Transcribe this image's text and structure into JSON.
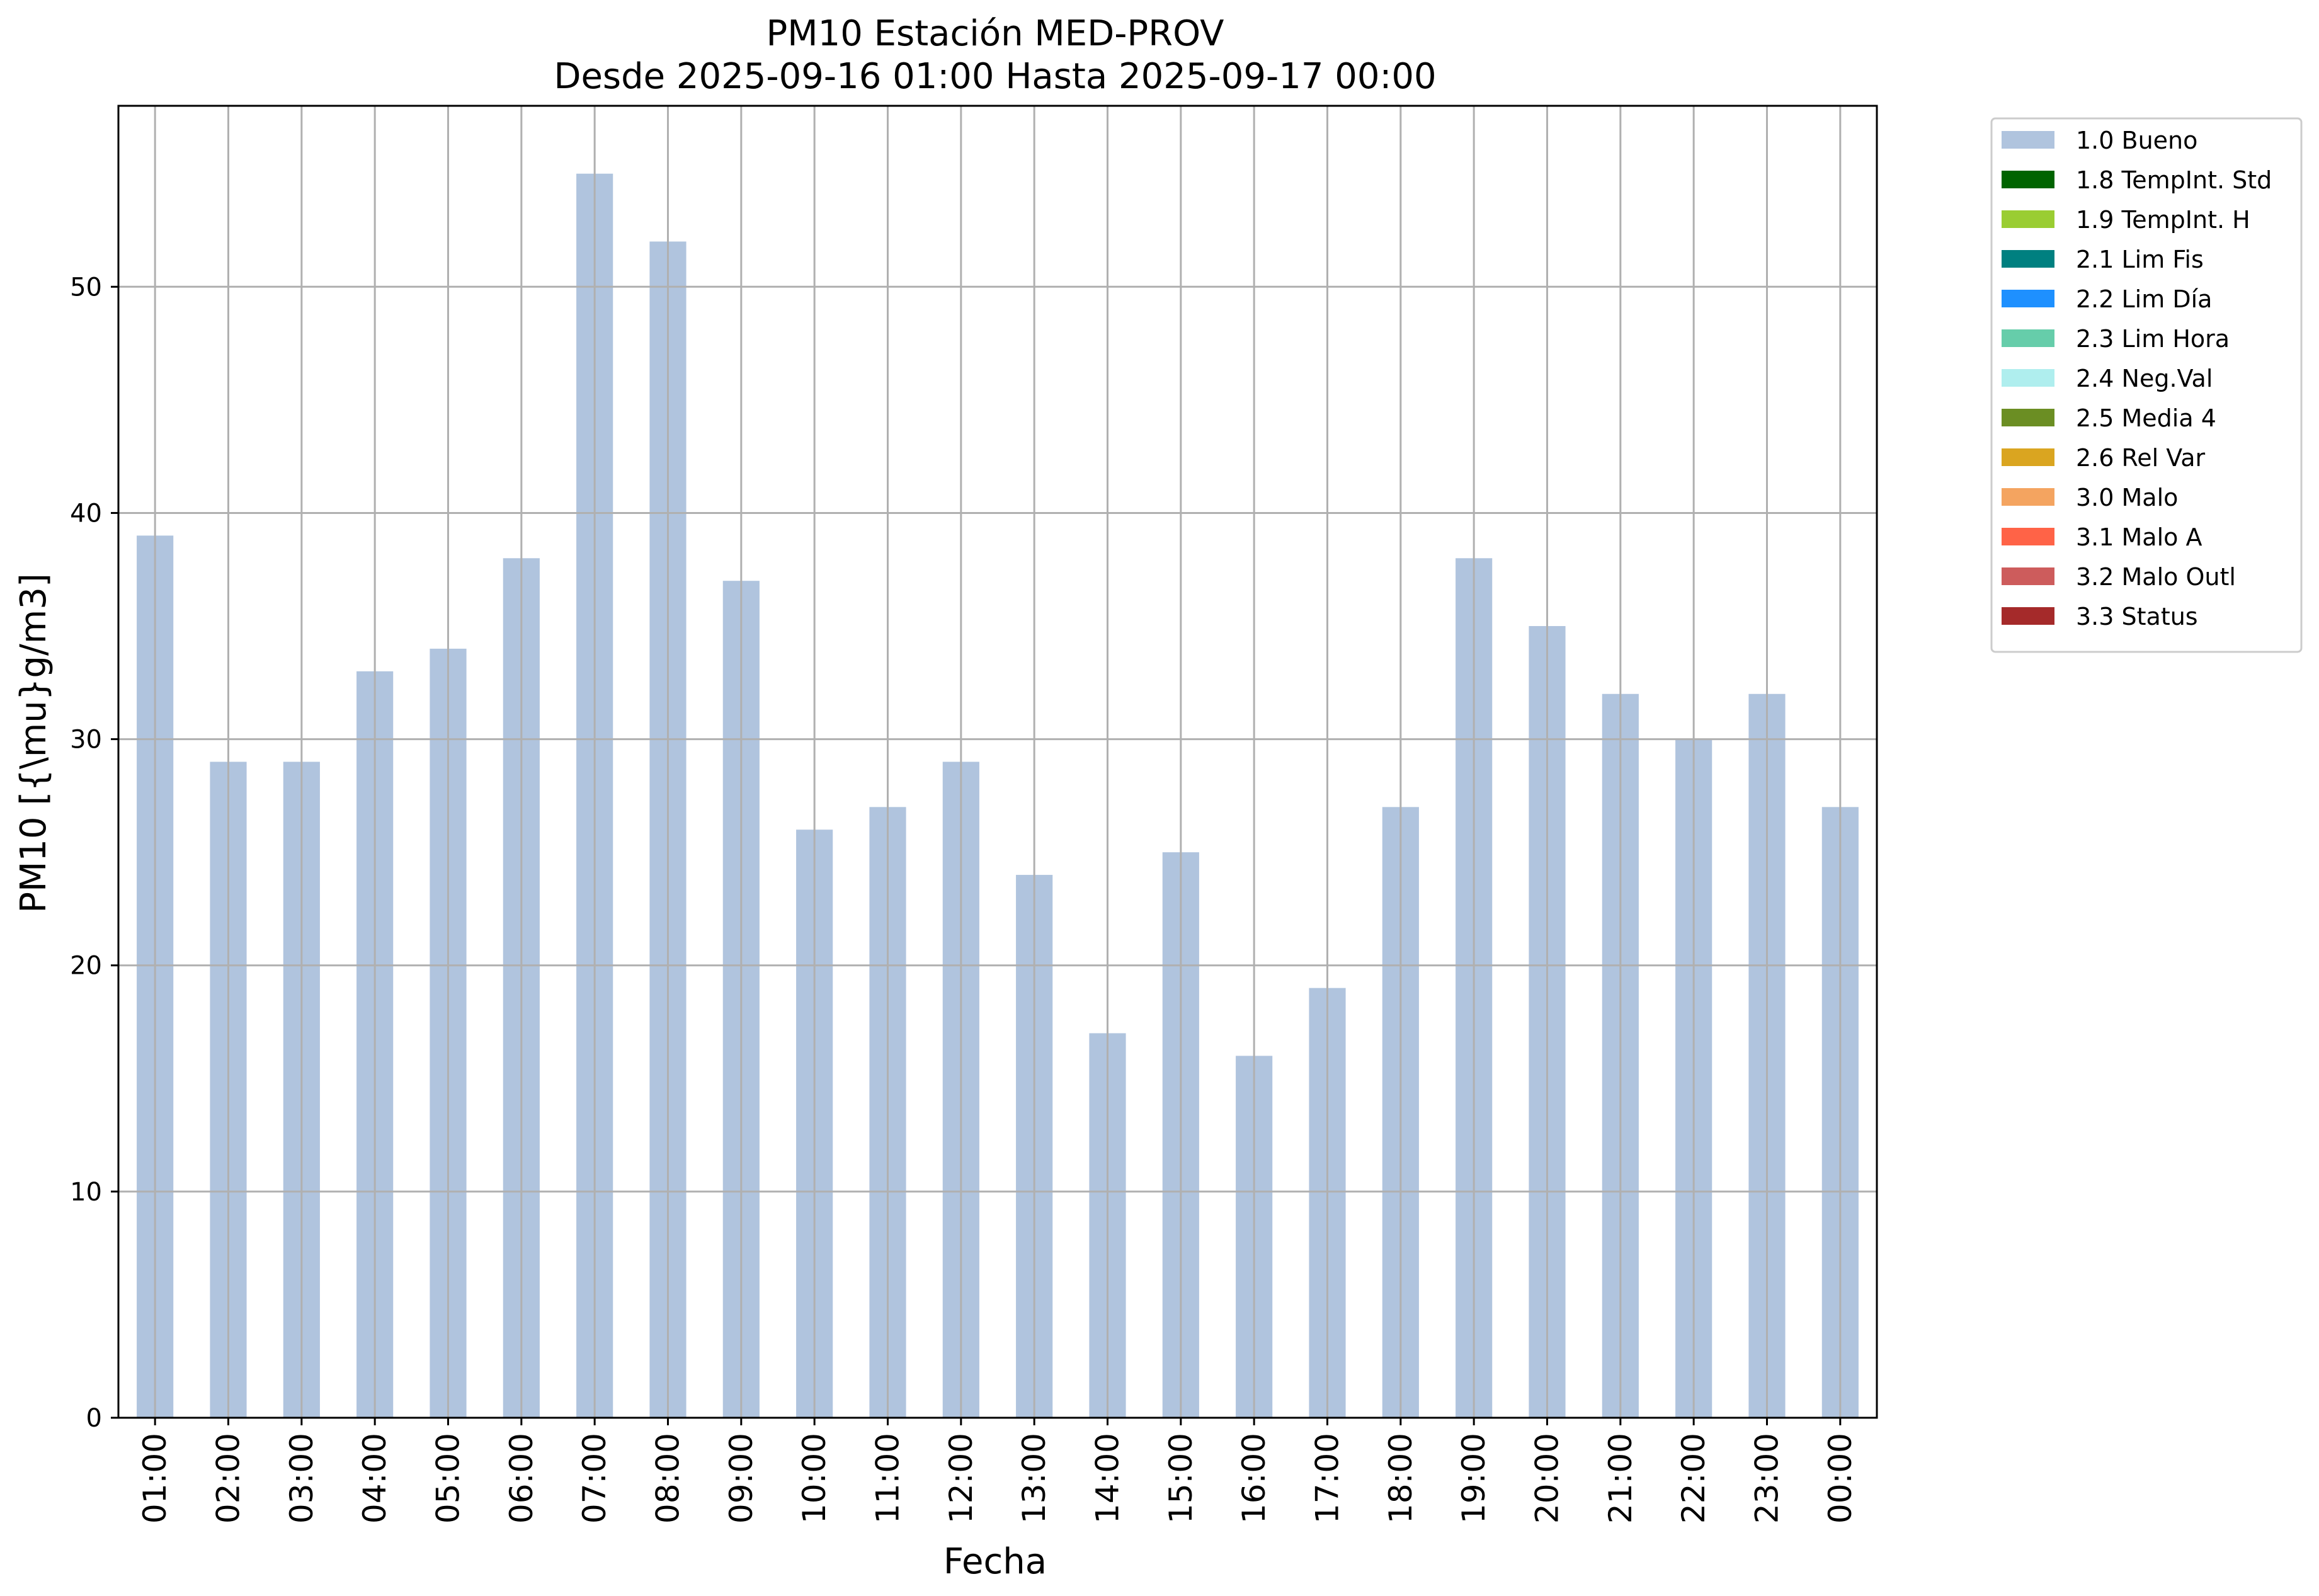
{
  "chart_data": {
    "type": "bar",
    "title": "PM10 Estación MED-PROV",
    "subtitle": "Desde 2025-09-16 01:00 Hasta 2025-09-17 00:00",
    "xlabel": "Fecha",
    "ylabel": "PM10 [{\\mu}g/m3]",
    "ylim": [
      0,
      58
    ],
    "yticks": [
      0,
      10,
      20,
      30,
      40,
      50
    ],
    "grid": true,
    "legend_position": "outside-top-right",
    "categories": [
      "01:00",
      "02:00",
      "03:00",
      "04:00",
      "05:00",
      "06:00",
      "07:00",
      "08:00",
      "09:00",
      "10:00",
      "11:00",
      "12:00",
      "13:00",
      "14:00",
      "15:00",
      "16:00",
      "17:00",
      "18:00",
      "19:00",
      "20:00",
      "21:00",
      "22:00",
      "23:00",
      "00:00"
    ],
    "series": [
      {
        "name": "1.0 Bueno",
        "color": "#b0c4de",
        "values": [
          39,
          29,
          29,
          33,
          34,
          38,
          55,
          52,
          37,
          26,
          27,
          29,
          24,
          17,
          25,
          16,
          19,
          27,
          38,
          35,
          32,
          30,
          32,
          27
        ]
      }
    ],
    "legend": [
      {
        "label": "1.0 Bueno",
        "color": "#b0c4de"
      },
      {
        "label": "1.8 TempInt. Std",
        "color": "#006400"
      },
      {
        "label": "1.9 TempInt. H",
        "color": "#9acd32"
      },
      {
        "label": "2.1 Lim Fis",
        "color": "#008080"
      },
      {
        "label": "2.2 Lim Día",
        "color": "#1e90ff"
      },
      {
        "label": "2.3 Lim Hora",
        "color": "#66cdaa"
      },
      {
        "label": "2.4 Neg.Val",
        "color": "#afeeee"
      },
      {
        "label": "2.5 Media 4",
        "color": "#6b8e23"
      },
      {
        "label": "2.6 Rel Var",
        "color": "#daa520"
      },
      {
        "label": "3.0 Malo",
        "color": "#f4a460"
      },
      {
        "label": "3.1 Malo A",
        "color": "#ff6347"
      },
      {
        "label": "3.2 Malo Outl",
        "color": "#cd5c5c"
      },
      {
        "label": "3.3 Status",
        "color": "#a52a2a"
      }
    ]
  }
}
